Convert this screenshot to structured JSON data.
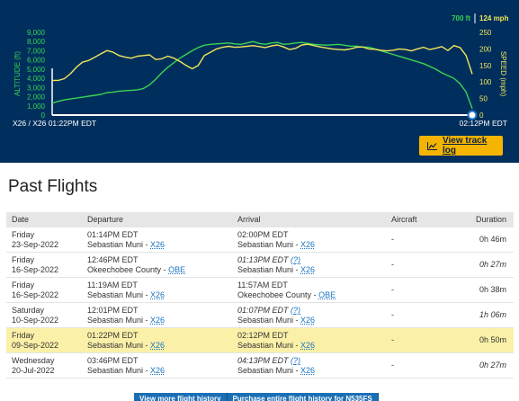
{
  "chart": {
    "altitude_axis_title": "ALTITUDE (ft)",
    "speed_axis_title": "SPEED (mph)",
    "altitude_ticks": [
      "9,000",
      "8,000",
      "7,000",
      "6,000",
      "5,000",
      "4,000",
      "3,000",
      "2,000",
      "1,000",
      "0"
    ],
    "speed_ticks": [
      "250",
      "200",
      "150",
      "100",
      "50",
      "0"
    ],
    "current_altitude": "700 ft",
    "current_speed": "124 mph",
    "origin_label": "X26 / X26 01:22PM EDT",
    "end_label": "02:12PM EDT",
    "track_log_label": "View track log",
    "colors": {
      "background": "#002f5d",
      "altitude": "#39d353",
      "speed": "#f0e65a",
      "button": "#f5b400"
    }
  },
  "chart_data": {
    "type": "line",
    "series": [
      {
        "name": "ALTITUDE (ft)",
        "axis": "left",
        "ylim": [
          0,
          9000
        ],
        "values": [
          1300,
          1500,
          1650,
          1750,
          1850,
          1950,
          2050,
          2150,
          2250,
          2450,
          2500,
          2600,
          2650,
          2700,
          2750,
          2900,
          3300,
          3900,
          4600,
          5200,
          5700,
          6200,
          6600,
          7000,
          7350,
          7600,
          7700,
          7750,
          7800,
          7850,
          7750,
          7700,
          7850,
          8000,
          7800,
          7700,
          7850,
          7900,
          7700,
          7750,
          7850,
          7900,
          7800,
          7700,
          7650,
          7600,
          7650,
          7700,
          7600,
          7500,
          7500,
          7400,
          7400,
          7200,
          7000,
          6800,
          6600,
          6400,
          6200,
          6000,
          5800,
          5600,
          5300,
          5000,
          4600,
          4300,
          4000,
          3400,
          2500,
          700
        ]
      },
      {
        "name": "SPEED (mph)",
        "axis": "right",
        "ylim": [
          0,
          250
        ],
        "values": [
          105,
          105,
          110,
          125,
          145,
          160,
          165,
          175,
          185,
          195,
          190,
          180,
          175,
          172,
          178,
          180,
          182,
          168,
          170,
          178,
          172,
          162,
          150,
          140,
          150,
          180,
          190,
          200,
          205,
          208,
          205,
          206,
          208,
          210,
          207,
          204,
          209,
          212,
          206,
          198,
          202,
          212,
          214,
          210,
          206,
          203,
          200,
          198,
          197,
          200,
          205,
          206,
          200,
          199,
          196,
          194,
          196,
          200,
          198,
          194,
          200,
          205,
          198,
          202,
          207,
          195,
          210,
          204,
          180,
          124
        ]
      }
    ]
  },
  "past_flights": {
    "title": "Past Flights",
    "columns": {
      "date": "Date",
      "departure": "Departure",
      "arrival": "Arrival",
      "aircraft": "Aircraft",
      "duration": "Duration"
    },
    "rows": [
      {
        "day": "Friday",
        "date": "23-Sep-2022",
        "dep_time": "01:14PM EDT",
        "dep_airport": "Sebastian Muni",
        "dep_code": "X26",
        "arr_time": "02:00PM EDT",
        "arr_estimated": false,
        "arr_airport": "Sebastian Muni",
        "arr_code": "X26",
        "aircraft": "-",
        "duration": "0h 46m",
        "duration_italic": false,
        "highlight": false
      },
      {
        "day": "Friday",
        "date": "16-Sep-2022",
        "dep_time": "12:46PM EDT",
        "dep_airport": "Okeechobee County",
        "dep_code": "OBE",
        "arr_time": "01:13PM EDT",
        "arr_estimated": true,
        "arr_airport": "Sebastian Muni",
        "arr_code": "X26",
        "aircraft": "-",
        "duration": "0h 27m",
        "duration_italic": true,
        "highlight": false
      },
      {
        "day": "Friday",
        "date": "16-Sep-2022",
        "dep_time": "11:19AM EDT",
        "dep_airport": "Sebastian Muni",
        "dep_code": "X26",
        "arr_time": "11:57AM EDT",
        "arr_estimated": false,
        "arr_airport": "Okeechobee County",
        "arr_code": "OBE",
        "aircraft": "-",
        "duration": "0h 38m",
        "duration_italic": false,
        "highlight": false
      },
      {
        "day": "Saturday",
        "date": "10-Sep-2022",
        "dep_time": "12:01PM EDT",
        "dep_airport": "Sebastian Muni",
        "dep_code": "X26",
        "arr_time": "01:07PM EDT",
        "arr_estimated": true,
        "arr_airport": "Sebastian Muni",
        "arr_code": "X26",
        "aircraft": "-",
        "duration": "1h 06m",
        "duration_italic": true,
        "highlight": false
      },
      {
        "day": "Friday",
        "date": "09-Sep-2022",
        "dep_time": "01:22PM EDT",
        "dep_airport": "Sebastian Muni",
        "dep_code": "X26",
        "arr_time": "02:12PM EDT",
        "arr_estimated": false,
        "arr_airport": "Sebastian Muni",
        "arr_code": "X26",
        "aircraft": "-",
        "duration": "0h 50m",
        "duration_italic": false,
        "highlight": true
      },
      {
        "day": "Wednesday",
        "date": "20-Jul-2022",
        "dep_time": "03:46PM EDT",
        "dep_airport": "Sebastian Muni",
        "dep_code": "X26",
        "arr_time": "04:13PM EDT",
        "arr_estimated": true,
        "arr_airport": "Sebastian Muni",
        "arr_code": "X26",
        "aircraft": "-",
        "duration": "0h 27m",
        "duration_italic": true,
        "highlight": false
      }
    ],
    "estimate_marker": "(?)",
    "more_history_label": "View more flight history",
    "purchase_label": "Purchase entire flight history for N535FS"
  }
}
